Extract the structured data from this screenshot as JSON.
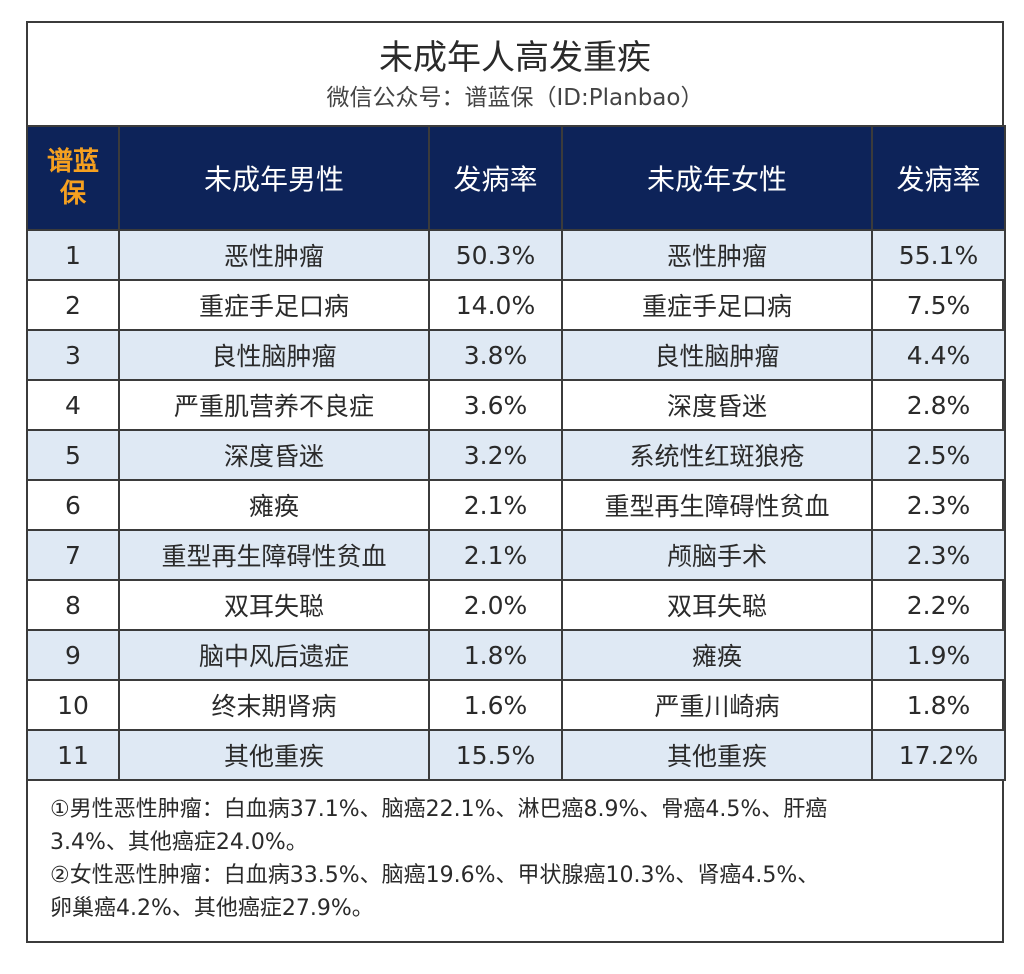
{
  "header": {
    "title": "未成年人高发重疾",
    "subtitle": "微信公众号：谱蓝保（ID:Planbao）"
  },
  "table": {
    "columns": {
      "brand": "谱蓝保",
      "male": "未成年男性",
      "male_rate": "发病率",
      "female": "未成年女性",
      "female_rate": "发病率"
    },
    "rows": [
      {
        "rank": "1",
        "male": "恶性肿瘤",
        "male_rate": "50.3%",
        "female": "恶性肿瘤",
        "female_rate": "55.1%"
      },
      {
        "rank": "2",
        "male": "重症手足口病",
        "male_rate": "14.0%",
        "female": "重症手足口病",
        "female_rate": "7.5%"
      },
      {
        "rank": "3",
        "male": "良性脑肿瘤",
        "male_rate": "3.8%",
        "female": "良性脑肿瘤",
        "female_rate": "4.4%"
      },
      {
        "rank": "4",
        "male": "严重肌营养不良症",
        "male_rate": "3.6%",
        "female": "深度昏迷",
        "female_rate": "2.8%"
      },
      {
        "rank": "5",
        "male": "深度昏迷",
        "male_rate": "3.2%",
        "female": "系统性红斑狼疮",
        "female_rate": "2.5%"
      },
      {
        "rank": "6",
        "male": "瘫痪",
        "male_rate": "2.1%",
        "female": "重型再生障碍性贫血",
        "female_rate": "2.3%"
      },
      {
        "rank": "7",
        "male": "重型再生障碍性贫血",
        "male_rate": "2.1%",
        "female": "颅脑手术",
        "female_rate": "2.3%"
      },
      {
        "rank": "8",
        "male": "双耳失聪",
        "male_rate": "2.0%",
        "female": "双耳失聪",
        "female_rate": "2.2%"
      },
      {
        "rank": "9",
        "male": "脑中风后遗症",
        "male_rate": "1.8%",
        "female": "瘫痪",
        "female_rate": "1.9%"
      },
      {
        "rank": "10",
        "male": "终末期肾病",
        "male_rate": "1.6%",
        "female": "严重川崎病",
        "female_rate": "1.8%"
      },
      {
        "rank": "11",
        "male": "其他重疾",
        "male_rate": "15.5%",
        "female": "其他重疾",
        "female_rate": "17.2%"
      }
    ]
  },
  "notes": {
    "male_1": "①男性恶性肿瘤：白血病37.1%、脑癌22.1%、淋巴癌8.9%、骨癌4.5%、肝癌",
    "male_2": "3.4%、其他癌症24.0%。",
    "female_1": "②女性恶性肿瘤：白血病33.5%、脑癌19.6%、甲状腺癌10.3%、肾癌4.5%、",
    "female_2": "卵巢癌4.2%、其他癌症27.9%。"
  },
  "colors": {
    "header_bg": "#0d2359",
    "brand_text": "#f5a020",
    "row_shade": "#dfe9f4"
  }
}
